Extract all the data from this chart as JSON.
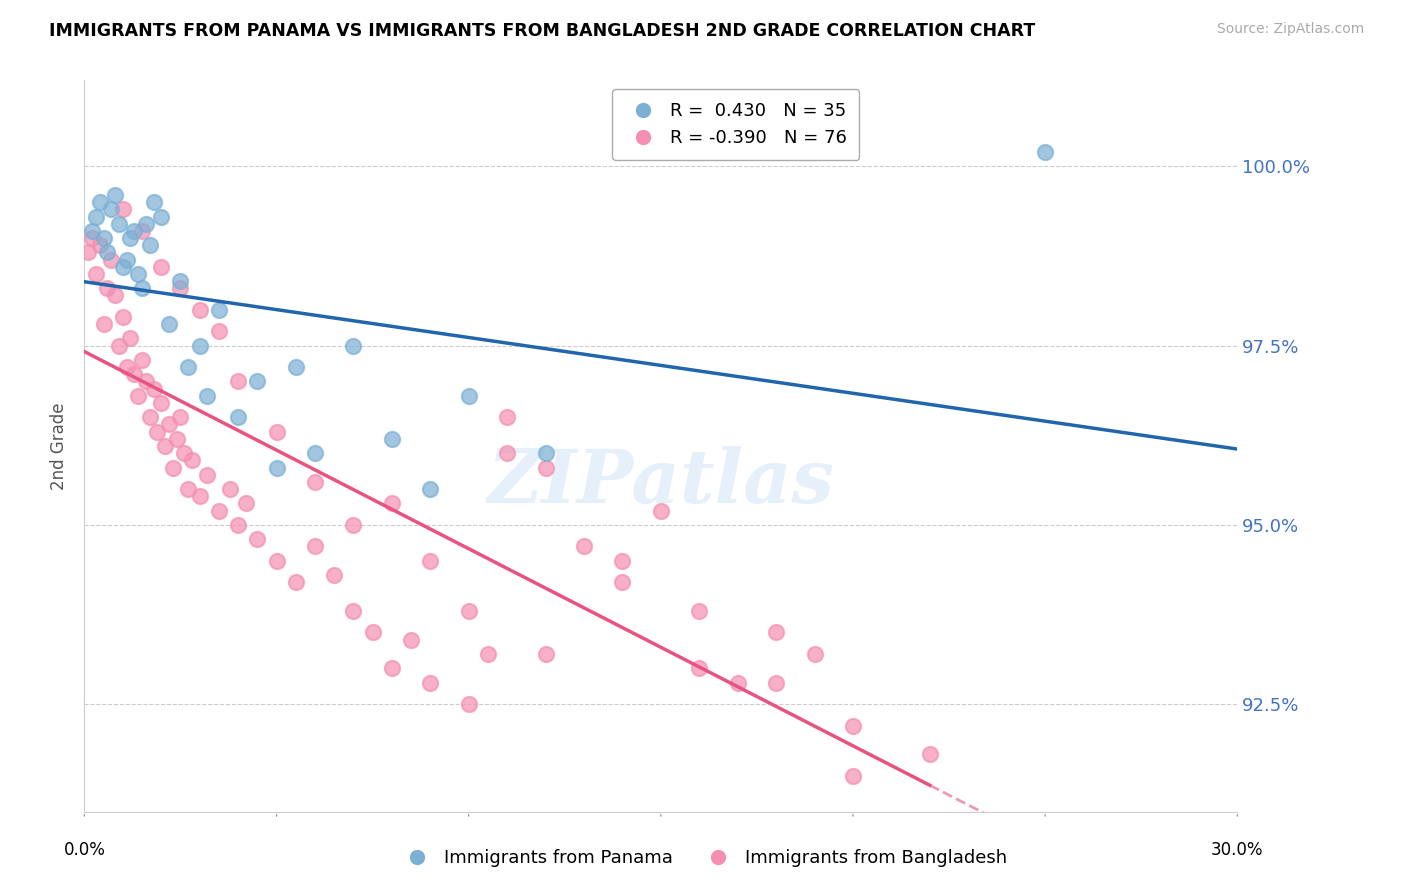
{
  "title": "IMMIGRANTS FROM PANAMA VS IMMIGRANTS FROM BANGLADESH 2ND GRADE CORRELATION CHART",
  "source": "Source: ZipAtlas.com",
  "ylabel": "2nd Grade",
  "y_ticks": [
    92.5,
    95.0,
    97.5,
    100.0
  ],
  "y_tick_labels": [
    "92.5%",
    "95.0%",
    "97.5%",
    "100.0%"
  ],
  "xlim": [
    0.0,
    30.0
  ],
  "ylim": [
    91.0,
    101.2
  ],
  "panama_R": 0.43,
  "panama_N": 35,
  "bangladesh_R": -0.39,
  "bangladesh_N": 76,
  "panama_color": "#7bafd4",
  "bangladesh_color": "#f48fb1",
  "trend_panama_color": "#2166ac",
  "trend_bangladesh_color": "#e75480",
  "panama_points_x": [
    0.2,
    0.3,
    0.4,
    0.5,
    0.6,
    0.7,
    0.8,
    0.9,
    1.0,
    1.1,
    1.2,
    1.3,
    1.4,
    1.5,
    1.6,
    1.7,
    1.8,
    2.0,
    2.2,
    2.5,
    2.7,
    3.0,
    3.2,
    3.5,
    4.0,
    4.5,
    5.0,
    5.5,
    6.0,
    7.0,
    8.0,
    9.0,
    10.0,
    12.0,
    25.0
  ],
  "panama_points_y": [
    99.1,
    99.3,
    99.5,
    99.0,
    98.8,
    99.4,
    99.6,
    99.2,
    98.6,
    98.7,
    99.0,
    99.1,
    98.5,
    98.3,
    99.2,
    98.9,
    99.5,
    99.3,
    97.8,
    98.4,
    97.2,
    97.5,
    96.8,
    98.0,
    96.5,
    97.0,
    95.8,
    97.2,
    96.0,
    97.5,
    96.2,
    95.5,
    96.8,
    96.0,
    100.2
  ],
  "bangladesh_points_x": [
    0.1,
    0.2,
    0.3,
    0.4,
    0.5,
    0.6,
    0.7,
    0.8,
    0.9,
    1.0,
    1.1,
    1.2,
    1.3,
    1.4,
    1.5,
    1.6,
    1.7,
    1.8,
    1.9,
    2.0,
    2.1,
    2.2,
    2.3,
    2.4,
    2.5,
    2.6,
    2.7,
    2.8,
    3.0,
    3.2,
    3.5,
    3.8,
    4.0,
    4.2,
    4.5,
    5.0,
    5.5,
    6.0,
    6.5,
    7.0,
    7.5,
    8.0,
    8.5,
    9.0,
    10.0,
    10.5,
    11.0,
    12.0,
    13.0,
    14.0,
    15.0,
    16.0,
    17.0,
    18.0,
    19.0,
    20.0,
    1.0,
    1.5,
    2.0,
    2.5,
    3.0,
    3.5,
    4.0,
    5.0,
    6.0,
    7.0,
    8.0,
    9.0,
    10.0,
    11.0,
    12.0,
    14.0,
    16.0,
    18.0,
    20.0,
    22.0
  ],
  "bangladesh_points_y": [
    98.8,
    99.0,
    98.5,
    98.9,
    97.8,
    98.3,
    98.7,
    98.2,
    97.5,
    97.9,
    97.2,
    97.6,
    97.1,
    96.8,
    97.3,
    97.0,
    96.5,
    96.9,
    96.3,
    96.7,
    96.1,
    96.4,
    95.8,
    96.2,
    96.5,
    96.0,
    95.5,
    95.9,
    95.4,
    95.7,
    95.2,
    95.5,
    95.0,
    95.3,
    94.8,
    94.5,
    94.2,
    94.7,
    94.3,
    93.8,
    93.5,
    93.0,
    93.4,
    92.8,
    92.5,
    93.2,
    96.5,
    95.8,
    94.7,
    94.5,
    95.2,
    93.8,
    92.8,
    93.5,
    93.2,
    91.5,
    99.4,
    99.1,
    98.6,
    98.3,
    98.0,
    97.7,
    97.0,
    96.3,
    95.6,
    95.0,
    95.3,
    94.5,
    93.8,
    96.0,
    93.2,
    94.2,
    93.0,
    92.8,
    92.2,
    91.8
  ],
  "watermark": "ZIPatlas"
}
